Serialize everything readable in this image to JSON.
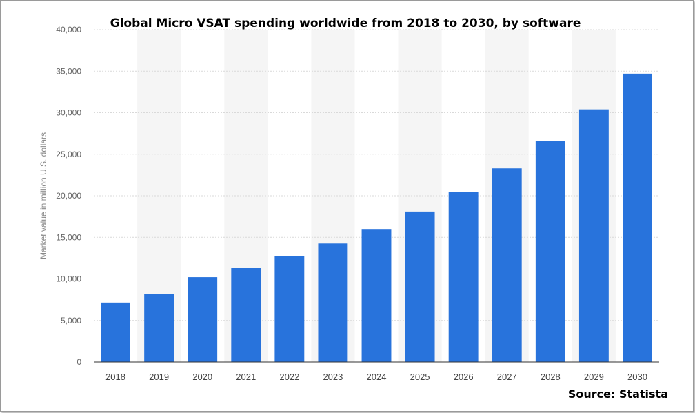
{
  "chart_data": {
    "type": "bar",
    "title": "Global Micro VSAT spending worldwide from 2018 to 2030, by software",
    "ylabel": "Market value in million U.S. dollars",
    "xlabel": "",
    "source": "Source: Statista",
    "categories": [
      "2018",
      "2019",
      "2020",
      "2021",
      "2022",
      "2023",
      "2024",
      "2025",
      "2026",
      "2027",
      "2028",
      "2029",
      "2030"
    ],
    "values": [
      7150,
      8150,
      10200,
      11300,
      12700,
      14250,
      16000,
      18100,
      20450,
      23300,
      26600,
      30400,
      34700
    ],
    "ylim": [
      0,
      40000
    ],
    "yticks": [
      "0",
      "5,000",
      "10,000",
      "15,000",
      "20,000",
      "25,000",
      "30,000",
      "35,000",
      "40,000"
    ],
    "grid": true,
    "bar_color": "#2873dc",
    "band_color": "#f5f5f5",
    "grid_color": "#d9d9d9"
  }
}
